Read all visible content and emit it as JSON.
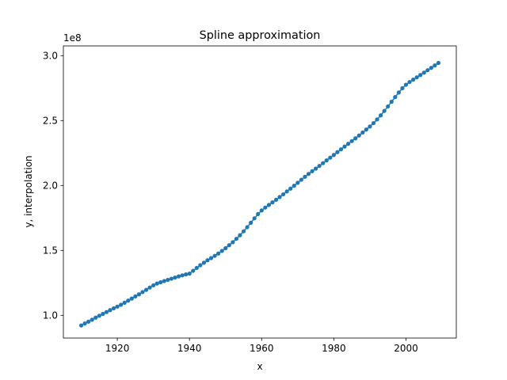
{
  "chart_data": {
    "type": "line",
    "title": "Spline approximation",
    "xlabel": "x",
    "ylabel": "y, interpolation",
    "y_offset_label": "1e8",
    "y_scale_multiplier": 100000000,
    "xlim": [
      1905.05,
      2013.95
    ],
    "ylim": [
      0.825,
      3.075
    ],
    "x_ticks": [
      1920,
      1940,
      1960,
      1980,
      2000
    ],
    "x_tick_labels": [
      "1920",
      "1940",
      "1960",
      "1980",
      "2000"
    ],
    "y_ticks": [
      1.0,
      1.5,
      2.0,
      2.5,
      3.0
    ],
    "y_tick_labels": [
      "1.0",
      "1.5",
      "2.0",
      "2.5",
      "3.0"
    ],
    "grid": false,
    "legend": "none",
    "series": [
      {
        "color": "#1f77b4",
        "marker": "circle",
        "x": [
          1910,
          1911,
          1912,
          1913,
          1914,
          1915,
          1916,
          1917,
          1918,
          1919,
          1920,
          1921,
          1922,
          1923,
          1924,
          1925,
          1926,
          1927,
          1928,
          1929,
          1930,
          1931,
          1932,
          1933,
          1934,
          1935,
          1936,
          1937,
          1938,
          1939,
          1940,
          1941,
          1942,
          1943,
          1944,
          1945,
          1946,
          1947,
          1948,
          1949,
          1950,
          1951,
          1952,
          1953,
          1954,
          1955,
          1956,
          1957,
          1958,
          1959,
          1960,
          1961,
          1962,
          1963,
          1964,
          1965,
          1966,
          1967,
          1968,
          1969,
          1970,
          1971,
          1972,
          1973,
          1974,
          1975,
          1976,
          1977,
          1978,
          1979,
          1980,
          1981,
          1982,
          1983,
          1984,
          1985,
          1986,
          1987,
          1988,
          1989,
          1990,
          1991,
          1992,
          1993,
          1994,
          1995,
          1996,
          1997,
          1998,
          1999,
          2000,
          2001,
          2002,
          2003,
          2004,
          2005,
          2006,
          2007,
          2008,
          2009
        ],
        "y": [
          0.922,
          0.937,
          0.951,
          0.966,
          0.982,
          0.997,
          1.011,
          1.025,
          1.04,
          1.054,
          1.067,
          1.081,
          1.097,
          1.113,
          1.129,
          1.146,
          1.162,
          1.179,
          1.196,
          1.214,
          1.231,
          1.245,
          1.255,
          1.264,
          1.273,
          1.282,
          1.291,
          1.3,
          1.308,
          1.315,
          1.321,
          1.343,
          1.365,
          1.386,
          1.405,
          1.424,
          1.441,
          1.458,
          1.476,
          1.496,
          1.517,
          1.54,
          1.563,
          1.589,
          1.617,
          1.647,
          1.679,
          1.713,
          1.747,
          1.78,
          1.808,
          1.83,
          1.85,
          1.87,
          1.89,
          1.911,
          1.932,
          1.954,
          1.976,
          1.998,
          2.021,
          2.044,
          2.067,
          2.089,
          2.11,
          2.13,
          2.151,
          2.172,
          2.193,
          2.214,
          2.235,
          2.257,
          2.279,
          2.3,
          2.321,
          2.342,
          2.363,
          2.385,
          2.408,
          2.431,
          2.454,
          2.48,
          2.509,
          2.54,
          2.574,
          2.609,
          2.645,
          2.681,
          2.716,
          2.749,
          2.776,
          2.797,
          2.815,
          2.833,
          2.851,
          2.869,
          2.888,
          2.906,
          2.925,
          2.944
        ]
      }
    ]
  }
}
